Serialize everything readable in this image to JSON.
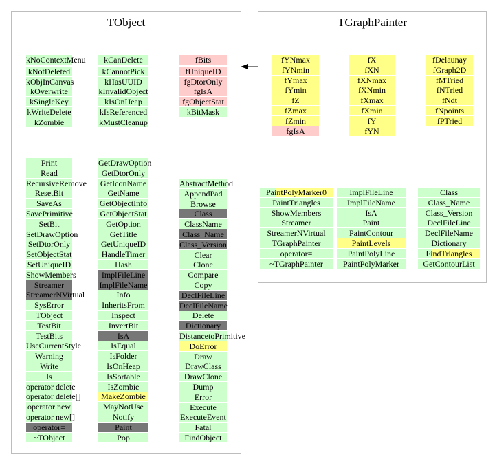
{
  "tobject": {
    "title": "TObject",
    "bits_col1": [
      {
        "text": "kNoContextMenu",
        "color": "green"
      },
      {
        "text": "kNotDeleted",
        "color": "green"
      },
      {
        "text": "kObjInCanvas",
        "color": "green"
      },
      {
        "text": "kOverwrite",
        "color": "green"
      },
      {
        "text": "kSingleKey",
        "color": "green"
      },
      {
        "text": "kWriteDelete",
        "color": "green"
      },
      {
        "text": "kZombie",
        "color": "green"
      }
    ],
    "bits_col2": [
      {
        "text": "kCanDelete",
        "color": "green"
      },
      {
        "text": "kCannotPick",
        "color": "green"
      },
      {
        "text": "kHasUUID",
        "color": "green"
      },
      {
        "text": "kInvalidObject",
        "color": "green"
      },
      {
        "text": "kIsOnHeap",
        "color": "green"
      },
      {
        "text": "kIsReferenced",
        "color": "green"
      },
      {
        "text": "kMustCleanup",
        "color": "green"
      }
    ],
    "bits_col3": [
      {
        "text": "fBits",
        "color": "pink"
      },
      {
        "text": "fUniqueID",
        "color": "pink"
      },
      {
        "text": "fgDtorOnly",
        "color": "pink"
      },
      {
        "text": "fgIsA",
        "color": "pink"
      },
      {
        "text": "fgObjectStat",
        "color": "pink"
      },
      {
        "text": "kBitMask",
        "color": "green"
      }
    ],
    "methods_col1": [
      {
        "text": "Print",
        "color": "green"
      },
      {
        "text": "Read",
        "color": "green"
      },
      {
        "text": "RecursiveRemove",
        "color": "green"
      },
      {
        "text": "ResetBit",
        "color": "green"
      },
      {
        "text": "SaveAs",
        "color": "green"
      },
      {
        "text": "SavePrimitive",
        "color": "green"
      },
      {
        "text": "SetBit",
        "color": "green"
      },
      {
        "text": "SetDrawOption",
        "color": "green"
      },
      {
        "text": "SetDtorOnly",
        "color": "green"
      },
      {
        "text": "SetObjectStat",
        "color": "green"
      },
      {
        "text": "SetUniqueID",
        "color": "green"
      },
      {
        "text": "ShowMembers",
        "color": "green"
      },
      {
        "text": "Streamer",
        "color": "dark"
      },
      {
        "text": "StreamerNVirtual",
        "color": "dark"
      },
      {
        "text": "SysError",
        "color": "green"
      },
      {
        "text": "TObject",
        "color": "green"
      },
      {
        "text": "TestBit",
        "color": "green"
      },
      {
        "text": "TestBits",
        "color": "green"
      },
      {
        "text": "UseCurrentStyle",
        "color": "green"
      },
      {
        "text": "Warning",
        "color": "green"
      },
      {
        "text": "Write",
        "color": "green"
      },
      {
        "text": "Is",
        "color": "green"
      },
      {
        "text": "operator delete",
        "color": "green"
      },
      {
        "text": "operator delete[]",
        "color": "green"
      },
      {
        "text": "operator new",
        "color": "green"
      },
      {
        "text": "operator new[]",
        "color": "green"
      },
      {
        "text": "operator=",
        "color": "dark"
      },
      {
        "text": "~TObject",
        "color": "green"
      }
    ],
    "methods_col2": [
      {
        "text": "GetDrawOption",
        "color": "green"
      },
      {
        "text": "GetDtorOnly",
        "color": "green"
      },
      {
        "text": "GetIconName",
        "color": "green"
      },
      {
        "text": "GetName",
        "color": "green"
      },
      {
        "text": "GetObjectInfo",
        "color": "green"
      },
      {
        "text": "GetObjectStat",
        "color": "green"
      },
      {
        "text": "GetOption",
        "color": "green"
      },
      {
        "text": "GetTitle",
        "color": "green"
      },
      {
        "text": "GetUniqueID",
        "color": "green"
      },
      {
        "text": "HandleTimer",
        "color": "green"
      },
      {
        "text": "Hash",
        "color": "green"
      },
      {
        "text": "ImplFileLine",
        "color": "dark"
      },
      {
        "text": "ImplFileName",
        "color": "dark"
      },
      {
        "text": "Info",
        "color": "green"
      },
      {
        "text": "InheritsFrom",
        "color": "green"
      },
      {
        "text": "Inspect",
        "color": "green"
      },
      {
        "text": "InvertBit",
        "color": "green"
      },
      {
        "text": "IsA",
        "color": "dark"
      },
      {
        "text": "IsEqual",
        "color": "green"
      },
      {
        "text": "IsFolder",
        "color": "green"
      },
      {
        "text": "IsOnHeap",
        "color": "green"
      },
      {
        "text": "IsSortable",
        "color": "green"
      },
      {
        "text": "IsZombie",
        "color": "green"
      },
      {
        "text": "MakeZombie",
        "color": "yellow"
      },
      {
        "text": "MayNotUse",
        "color": "green"
      },
      {
        "text": "Notify",
        "color": "green"
      },
      {
        "text": "Paint",
        "color": "dark"
      },
      {
        "text": "Pop",
        "color": "green"
      }
    ],
    "methods_col3": [
      {
        "text": "AbstractMethod",
        "color": "green"
      },
      {
        "text": "AppendPad",
        "color": "green"
      },
      {
        "text": "Browse",
        "color": "green"
      },
      {
        "text": "Class",
        "color": "dark"
      },
      {
        "text": "ClassName",
        "color": "green"
      },
      {
        "text": "Class_Name",
        "color": "dark"
      },
      {
        "text": "Class_Version",
        "color": "dark"
      },
      {
        "text": "Clear",
        "color": "green"
      },
      {
        "text": "Clone",
        "color": "green"
      },
      {
        "text": "Compare",
        "color": "green"
      },
      {
        "text": "Copy",
        "color": "green"
      },
      {
        "text": "DeclFileLine",
        "color": "dark"
      },
      {
        "text": "DeclFileName",
        "color": "dark"
      },
      {
        "text": "Delete",
        "color": "green"
      },
      {
        "text": "Dictionary",
        "color": "dark"
      },
      {
        "text": "DistancetoPrimitive",
        "color": "green"
      },
      {
        "text": "DoError",
        "color": "yellow"
      },
      {
        "text": "Draw",
        "color": "green"
      },
      {
        "text": "DrawClass",
        "color": "green"
      },
      {
        "text": "DrawClone",
        "color": "green"
      },
      {
        "text": "Dump",
        "color": "green"
      },
      {
        "text": "Error",
        "color": "green"
      },
      {
        "text": "Execute",
        "color": "green"
      },
      {
        "text": "ExecuteEvent",
        "color": "green"
      },
      {
        "text": "Fatal",
        "color": "green"
      },
      {
        "text": "FindObject",
        "color": "green"
      }
    ]
  },
  "tgraphpainter": {
    "title": "TGraphPainter",
    "members_col1": [
      {
        "text": "fYNmax",
        "color": "yellow"
      },
      {
        "text": "fYNmin",
        "color": "yellow"
      },
      {
        "text": "fYmax",
        "color": "yellow"
      },
      {
        "text": "fYmin",
        "color": "yellow"
      },
      {
        "text": "fZ",
        "color": "yellow"
      },
      {
        "text": "fZmax",
        "color": "yellow"
      },
      {
        "text": "fZmin",
        "color": "yellow"
      },
      {
        "text": "fgIsA",
        "color": "pink"
      }
    ],
    "members_col2": [
      {
        "text": "fX",
        "color": "yellow"
      },
      {
        "text": "fXN",
        "color": "yellow"
      },
      {
        "text": "fXNmax",
        "color": "yellow"
      },
      {
        "text": "fXNmin",
        "color": "yellow"
      },
      {
        "text": "fXmax",
        "color": "yellow"
      },
      {
        "text": "fXmin",
        "color": "yellow"
      },
      {
        "text": "fY",
        "color": "yellow"
      },
      {
        "text": "fYN",
        "color": "yellow"
      }
    ],
    "members_col3": [
      {
        "text": "fDelaunay",
        "color": "yellow"
      },
      {
        "text": "fGraph2D",
        "color": "yellow"
      },
      {
        "text": "fMTried",
        "color": "yellow"
      },
      {
        "text": "fNTried",
        "color": "yellow"
      },
      {
        "text": "fNdt",
        "color": "yellow"
      },
      {
        "text": "fNpoints",
        "color": "yellow"
      },
      {
        "text": "fPTried",
        "color": "yellow"
      }
    ],
    "methods_col1": [
      {
        "text": "PaintPolyMarker0",
        "color": "half-yellow"
      },
      {
        "text": "PaintTriangles",
        "color": "green"
      },
      {
        "text": "ShowMembers",
        "color": "green"
      },
      {
        "text": "Streamer",
        "color": "green"
      },
      {
        "text": "StreamerNVirtual",
        "color": "green"
      },
      {
        "text": "TGraphPainter",
        "color": "green"
      },
      {
        "text": "operator=",
        "color": "green"
      },
      {
        "text": "~TGraphPainter",
        "color": "green"
      }
    ],
    "methods_col2": [
      {
        "text": "ImplFileLine",
        "color": "green"
      },
      {
        "text": "ImplFileName",
        "color": "green"
      },
      {
        "text": "IsA",
        "color": "green"
      },
      {
        "text": "Paint",
        "color": "green"
      },
      {
        "text": "PaintContour",
        "color": "green"
      },
      {
        "text": "PaintLevels",
        "color": "yellow"
      },
      {
        "text": "PaintPolyLine",
        "color": "green"
      },
      {
        "text": "PaintPolyMarker",
        "color": "green"
      }
    ],
    "methods_col3": [
      {
        "text": "Class",
        "color": "green"
      },
      {
        "text": "Class_Name",
        "color": "green"
      },
      {
        "text": "Class_Version",
        "color": "green"
      },
      {
        "text": "DeclFileLine",
        "color": "green"
      },
      {
        "text": "DeclFileName",
        "color": "green"
      },
      {
        "text": "Dictionary",
        "color": "green"
      },
      {
        "text": "FindTriangles",
        "color": "half-yellow"
      },
      {
        "text": "GetContourList",
        "color": "green"
      }
    ]
  },
  "colors": {
    "public": "#ccffcc",
    "protected": "#ffff88",
    "private": "#ffcccc",
    "inherited": "#777777",
    "border": "#bdbdbd"
  }
}
